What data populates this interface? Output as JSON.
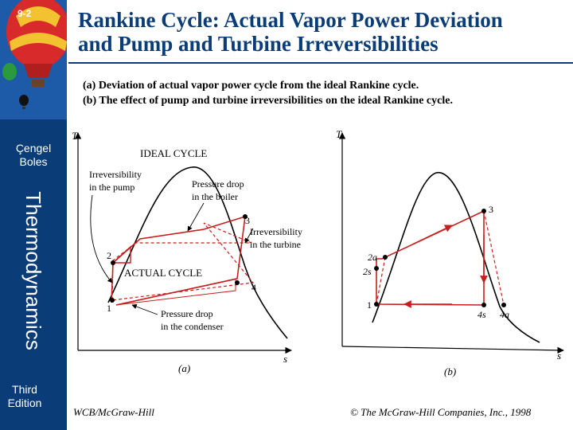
{
  "slide": {
    "number": "9-2",
    "authors_line1": "Çengel",
    "authors_line2": "Boles",
    "book_title": "Thermodynamics",
    "edition_line1": "Third",
    "edition_line2": "Edition",
    "title_line1": "Rankine Cycle: Actual Vapor Power Deviation",
    "title_line2": "and Pump and Turbine Irreversibilities",
    "caption_a": "(a) Deviation of actual vapor power cycle from the ideal Rankine cycle.",
    "caption_b": "(b) The effect of pump and turbine irreversibilities on the ideal Rankine cycle.",
    "footer_left": "WCB/McGraw-Hill",
    "footer_right": "© The McGraw-Hill Companies, Inc., 1998"
  },
  "diagram_a": {
    "t_axis": "T",
    "s_axis": "s",
    "sub_label": "(a)",
    "ideal_cycle_label": "IDEAL CYCLE",
    "actual_cycle_label": "ACTUAL CYCLE",
    "pump_irrev_line1": "Irreversibility",
    "pump_irrev_line2": "in the pump",
    "boiler_drop_line1": "Pressure drop",
    "boiler_drop_line2": "in the boiler",
    "turbine_irrev_line1": "Irreversibility",
    "turbine_irrev_line2": "in the turbine",
    "condenser_drop_line1": "Pressure drop",
    "condenser_drop_line2": "in the condenser",
    "state_1": "1",
    "state_2": "2",
    "state_3": "3",
    "state_4": "4"
  },
  "diagram_b": {
    "t_axis": "T",
    "s_axis": "s",
    "sub_label": "(b)",
    "state_1": "1",
    "state_2a": "2a",
    "state_2s": "2s",
    "state_3": "3",
    "state_4s": "4s",
    "state_4a": "4a"
  },
  "colors": {
    "sidebar": "#0a3c78",
    "title": "#0a3c78",
    "cycle": "#c81e1e"
  }
}
